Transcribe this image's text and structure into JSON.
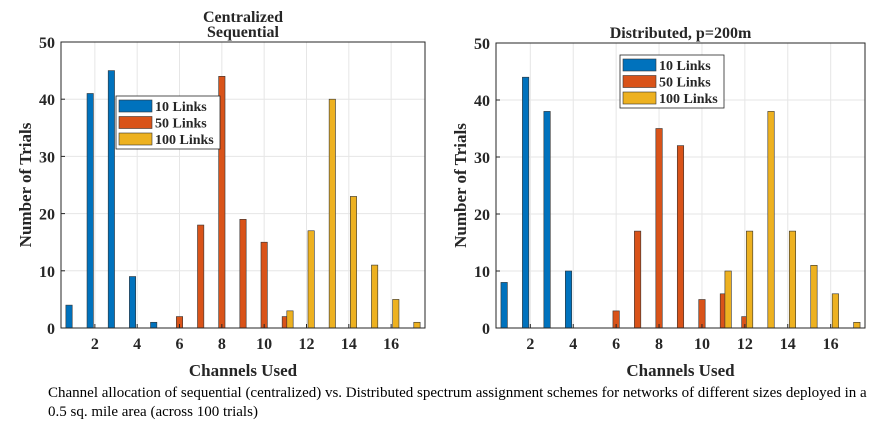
{
  "chart_data": [
    {
      "type": "bar",
      "title": "Centralized\nSequential",
      "xlabel": "Channels Used",
      "ylabel": "Number of Trials",
      "xlim": [
        0.4,
        17.6
      ],
      "ylim": [
        0,
        50
      ],
      "xticks": [
        2,
        4,
        6,
        8,
        10,
        12,
        14,
        16
      ],
      "yticks": [
        0,
        10,
        20,
        30,
        40,
        50
      ],
      "grid": true,
      "legend_placement": "upper-left-center",
      "series": [
        {
          "name": "10 Links",
          "color": "#0072BD",
          "x": [
            1,
            2,
            3,
            4,
            5
          ],
          "values": [
            4,
            41,
            45,
            9,
            1
          ]
        },
        {
          "name": "50 Links",
          "color": "#D95319",
          "x": [
            6,
            7,
            8,
            9,
            10,
            11
          ],
          "values": [
            2,
            18,
            44,
            19,
            15,
            2
          ]
        },
        {
          "name": "100 Links",
          "color": "#EDB120",
          "x": [
            11,
            12,
            13,
            14,
            15,
            16,
            17
          ],
          "values": [
            3,
            17,
            40,
            23,
            11,
            5,
            1
          ]
        }
      ]
    },
    {
      "type": "bar",
      "title": "Distributed, p=200m",
      "xlabel": "Channels Used",
      "ylabel": "Number of Trials",
      "xlim": [
        0.4,
        17.6
      ],
      "ylim": [
        0,
        50
      ],
      "xticks": [
        2,
        4,
        6,
        8,
        10,
        12,
        14,
        16
      ],
      "yticks": [
        0,
        10,
        20,
        30,
        40,
        50
      ],
      "grid": true,
      "legend_placement": "top-center",
      "series": [
        {
          "name": "10 Links",
          "color": "#0072BD",
          "x": [
            1,
            2,
            3,
            4
          ],
          "values": [
            8,
            44,
            38,
            10
          ]
        },
        {
          "name": "50 Links",
          "color": "#D95319",
          "x": [
            6,
            7,
            8,
            9,
            10,
            11,
            12
          ],
          "values": [
            3,
            17,
            35,
            32,
            5,
            6,
            2
          ]
        },
        {
          "name": "100 Links",
          "color": "#EDB120",
          "x": [
            11,
            12,
            13,
            14,
            15,
            16,
            17
          ],
          "values": [
            10,
            17,
            38,
            17,
            11,
            6,
            1
          ]
        }
      ]
    }
  ],
  "caption": "Channel allocation of sequential (centralized) vs. Distributed spectrum assignment schemes for networks of different sizes deployed in a 0.5 sq. mile area (across 100 trials)"
}
